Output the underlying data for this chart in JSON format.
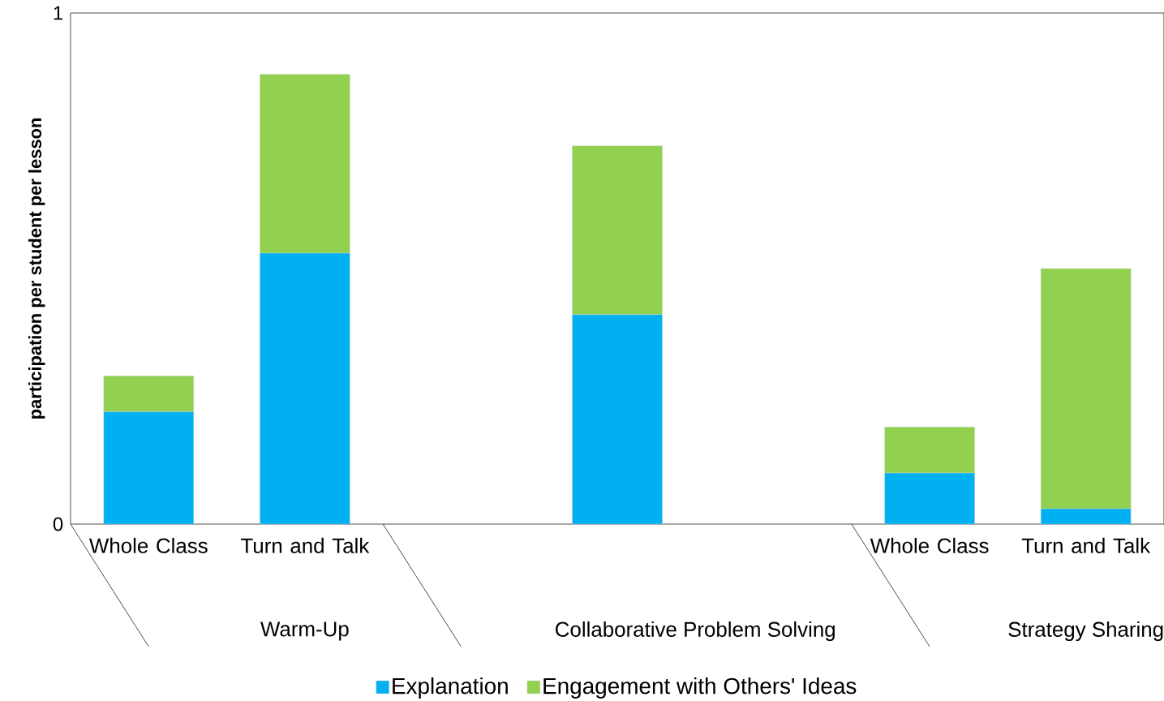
{
  "chart_data": {
    "type": "bar",
    "stacked": true,
    "ylabel": "participation per student per lesson",
    "categories": [
      "Whole Class",
      "Turn and Talk",
      null,
      null,
      null,
      "Whole Class",
      "Turn and Talk"
    ],
    "series": [
      {
        "name": "Explanation",
        "color": "#00b0f0",
        "values": [
          0.22,
          0.53,
          null,
          0.41,
          null,
          0.1,
          0.03
        ]
      },
      {
        "name": "Engagement with Others' Ideas",
        "color": "#92d050",
        "values": [
          0.07,
          0.35,
          null,
          0.33,
          null,
          0.09,
          0.47
        ]
      }
    ],
    "ylim": [
      0,
      1
    ],
    "yticks": [
      0,
      1
    ],
    "legend": "bottom",
    "grid": false,
    "annotations": [
      "Warm-Up",
      "Collaborative Problem Solving",
      "Strategy Sharing"
    ]
  }
}
